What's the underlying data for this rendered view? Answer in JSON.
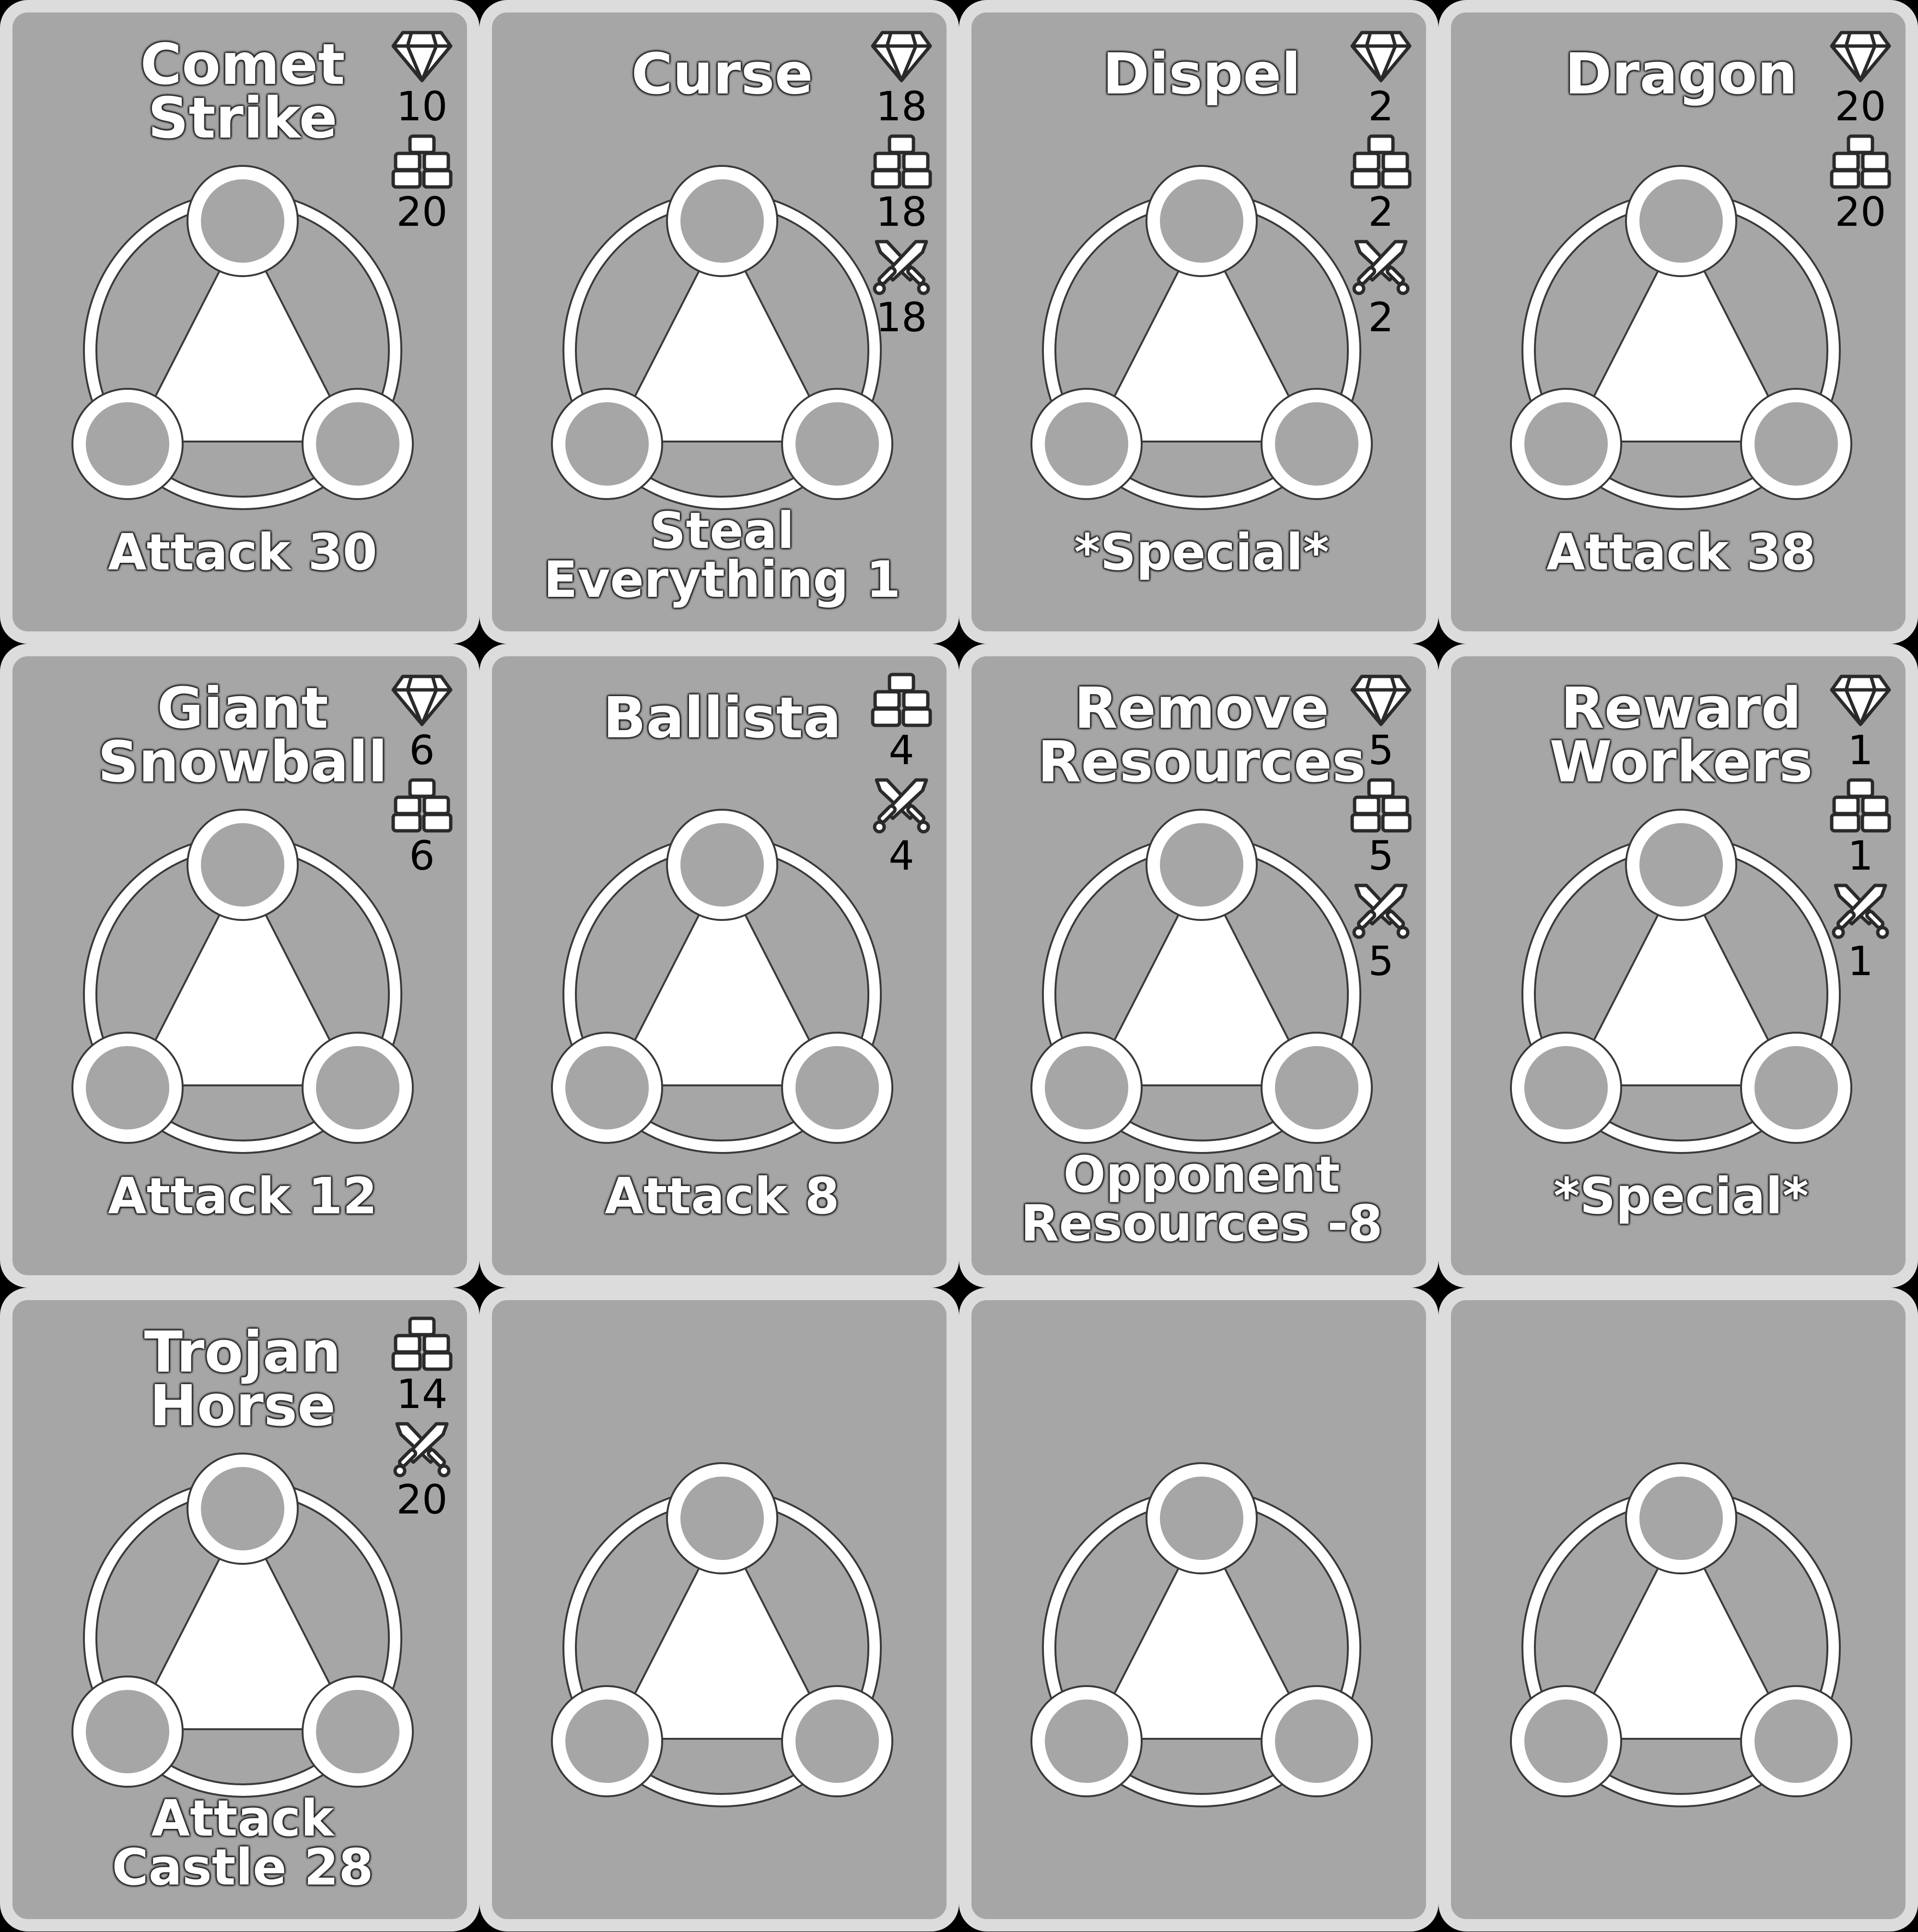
{
  "colors": {
    "card_face": "#a6a6a6",
    "card_border": "#dcdcdc",
    "background": "#000000",
    "emblem": "#ffffff",
    "cost_text": "#000000"
  },
  "cards": [
    {
      "title": "Comet\nStrike",
      "effect": "Attack 30",
      "costs": [
        {
          "icon": "gem-icon",
          "value": "10"
        },
        {
          "icon": "bricks-icon",
          "value": "20"
        }
      ]
    },
    {
      "title": "Curse",
      "effect": "Steal\nEverything 1",
      "costs": [
        {
          "icon": "gem-icon",
          "value": "18"
        },
        {
          "icon": "bricks-icon",
          "value": "18"
        },
        {
          "icon": "swords-icon",
          "value": "18"
        }
      ]
    },
    {
      "title": "Dispel",
      "effect": "*Special*",
      "costs": [
        {
          "icon": "gem-icon",
          "value": "2"
        },
        {
          "icon": "bricks-icon",
          "value": "2"
        },
        {
          "icon": "swords-icon",
          "value": "2"
        }
      ]
    },
    {
      "title": "Dragon",
      "effect": "Attack 38",
      "costs": [
        {
          "icon": "gem-icon",
          "value": "20"
        },
        {
          "icon": "bricks-icon",
          "value": "20"
        }
      ]
    },
    {
      "title": "Giant\nSnowball",
      "effect": "Attack 12",
      "costs": [
        {
          "icon": "gem-icon",
          "value": "6"
        },
        {
          "icon": "bricks-icon",
          "value": "6"
        }
      ]
    },
    {
      "title": "Ballista",
      "effect": "Attack 8",
      "costs": [
        {
          "icon": "bricks-icon",
          "value": "4"
        },
        {
          "icon": "swords-icon",
          "value": "4"
        }
      ]
    },
    {
      "title": "Remove\nResources",
      "effect": "Opponent\nResources -8",
      "costs": [
        {
          "icon": "gem-icon",
          "value": "5"
        },
        {
          "icon": "bricks-icon",
          "value": "5"
        },
        {
          "icon": "swords-icon",
          "value": "5"
        }
      ]
    },
    {
      "title": "Reward\nWorkers",
      "effect": "*Special*",
      "costs": [
        {
          "icon": "gem-icon",
          "value": "1"
        },
        {
          "icon": "bricks-icon",
          "value": "1"
        },
        {
          "icon": "swords-icon",
          "value": "1"
        }
      ]
    },
    {
      "title": "Trojan\nHorse",
      "effect": "Attack\nCastle 28",
      "costs": [
        {
          "icon": "bricks-icon",
          "value": "14"
        },
        {
          "icon": "swords-icon",
          "value": "20"
        }
      ]
    },
    {
      "title": "",
      "effect": "",
      "costs": []
    },
    {
      "title": "",
      "effect": "",
      "costs": []
    },
    {
      "title": "",
      "effect": "",
      "costs": []
    }
  ]
}
